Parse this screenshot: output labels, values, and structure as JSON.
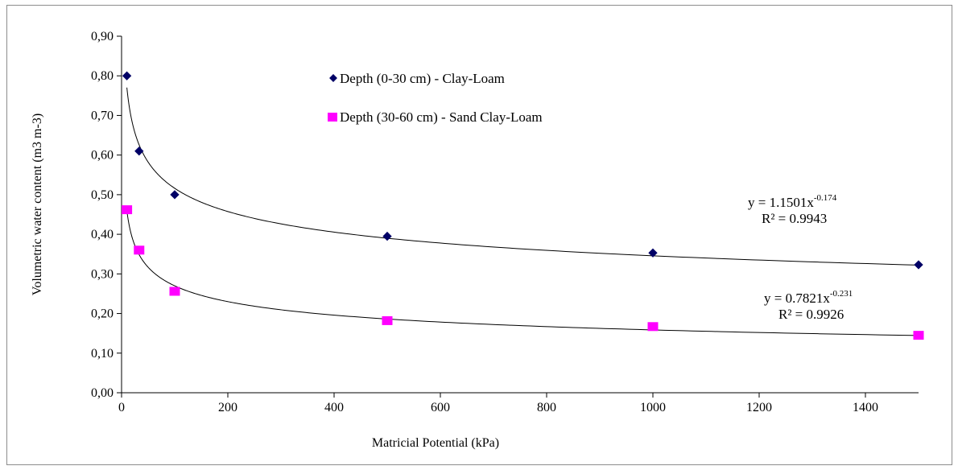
{
  "chart_data": {
    "type": "scatter",
    "xlabel": "Matricial  Potential  (kPa)",
    "ylabel": "Volumetric  water content (m3 m-3)",
    "xlim": [
      0,
      1500
    ],
    "ylim": [
      0,
      0.9
    ],
    "x_ticks": [
      0,
      200,
      400,
      600,
      800,
      1000,
      1200,
      1400
    ],
    "x_tick_labels": [
      "0",
      "200",
      "400",
      "600",
      "800",
      "1000",
      "1200",
      "1400"
    ],
    "y_ticks": [
      0,
      0.1,
      0.2,
      0.3,
      0.4,
      0.5,
      0.6,
      0.7,
      0.8,
      0.9
    ],
    "y_tick_labels": [
      "0,00",
      "0,10",
      "0,20",
      "0,30",
      "0,40",
      "0,50",
      "0,60",
      "0,70",
      "0,80",
      "0,90"
    ],
    "grid": false,
    "legend_position": "top-left",
    "series": [
      {
        "name": "Depth (0-30 cm) - Clay-Loam",
        "marker": "diamond",
        "color": "#000066",
        "x": [
          10,
          33,
          100,
          500,
          1000,
          1500
        ],
        "y": [
          0.8,
          0.61,
          0.5,
          0.395,
          0.353,
          0.323
        ],
        "trendline": {
          "type": "power",
          "a": 1.1501,
          "b": -0.174,
          "equation": "y = 1.1501x",
          "exponent": "-0.174",
          "r2_text": "R² = 0.9943"
        }
      },
      {
        "name": "Depth (30-60 cm) - Sand Clay-Loam",
        "marker": "square",
        "color": "#ff00ff",
        "x": [
          10,
          33,
          100,
          500,
          1000,
          1500
        ],
        "y": [
          0.462,
          0.36,
          0.256,
          0.182,
          0.167,
          0.145
        ],
        "trendline": {
          "type": "power",
          "a": 0.7821,
          "b": -0.231,
          "equation": "y = 0.7821x",
          "exponent": "-0.231",
          "r2_text": "R² = 0.9926"
        }
      }
    ]
  }
}
